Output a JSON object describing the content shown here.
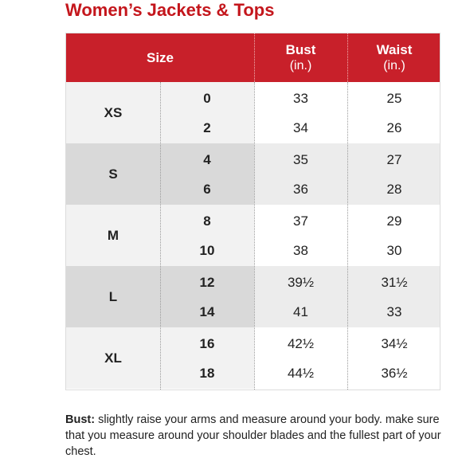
{
  "title": "Women’s Jackets & Tops",
  "header": {
    "size": "Size",
    "bust": "Bust",
    "bust_unit": "(in.)",
    "waist": "Waist",
    "waist_unit": "(in.)"
  },
  "groups": [
    {
      "label": "XS",
      "rows": [
        {
          "size": "0",
          "bust": "33",
          "waist": "25"
        },
        {
          "size": "2",
          "bust": "34",
          "waist": "26"
        }
      ]
    },
    {
      "label": "S",
      "rows": [
        {
          "size": "4",
          "bust": "35",
          "waist": "27"
        },
        {
          "size": "6",
          "bust": "36",
          "waist": "28"
        }
      ]
    },
    {
      "label": "M",
      "rows": [
        {
          "size": "8",
          "bust": "37",
          "waist": "29"
        },
        {
          "size": "10",
          "bust": "38",
          "waist": "30"
        }
      ]
    },
    {
      "label": "L",
      "rows": [
        {
          "size": "12",
          "bust": "39½",
          "waist": "31½"
        },
        {
          "size": "14",
          "bust": "41",
          "waist": "33"
        }
      ]
    },
    {
      "label": "XL",
      "rows": [
        {
          "size": "16",
          "bust": "42½",
          "waist": "34½"
        },
        {
          "size": "18",
          "bust": "44½",
          "waist": "36½"
        }
      ]
    }
  ],
  "note": {
    "label": "Bust:",
    "text": " slightly raise your arms and measure around your body. make sure that you measure around your shoulder blades and the fullest part of your chest."
  }
}
